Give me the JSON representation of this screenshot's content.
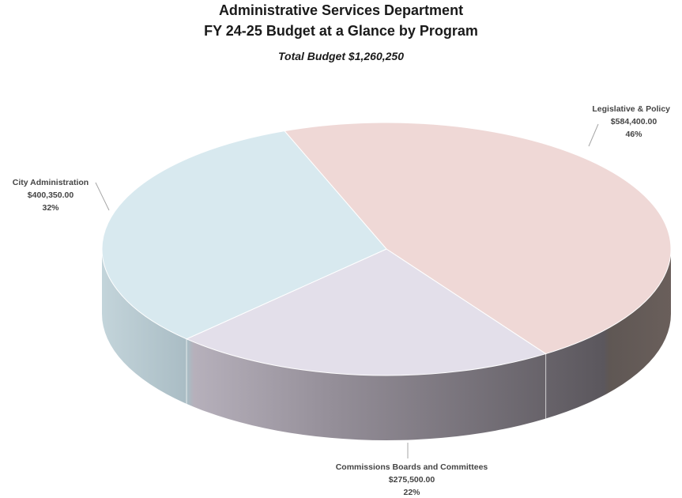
{
  "title_line1": "Administrative Services Department",
  "title_line2": "FY 24-25 Budget at a Glance by Program",
  "subtitle": "Total Budget $1,260,250",
  "chart_data": {
    "type": "pie",
    "style": "3d",
    "total": 1260250,
    "slices": [
      {
        "name": "Legislative & Policy",
        "value": 584400.0,
        "value_label": "$584,400.00",
        "percent_label": "46%",
        "color": "#efd8d6",
        "side_color": "#6e625f"
      },
      {
        "name": "Commissions Boards and Committees",
        "value": 275500.0,
        "value_label": "$275,500.00",
        "percent_label": "22%",
        "color": "#e3dfea",
        "side_color": "#8f8a95"
      },
      {
        "name": "City Administration",
        "value": 400350.0,
        "value_label": "$400,350.00",
        "percent_label": "32%",
        "color": "#d8e9ef",
        "side_color": "#a9c0c8"
      }
    ]
  }
}
